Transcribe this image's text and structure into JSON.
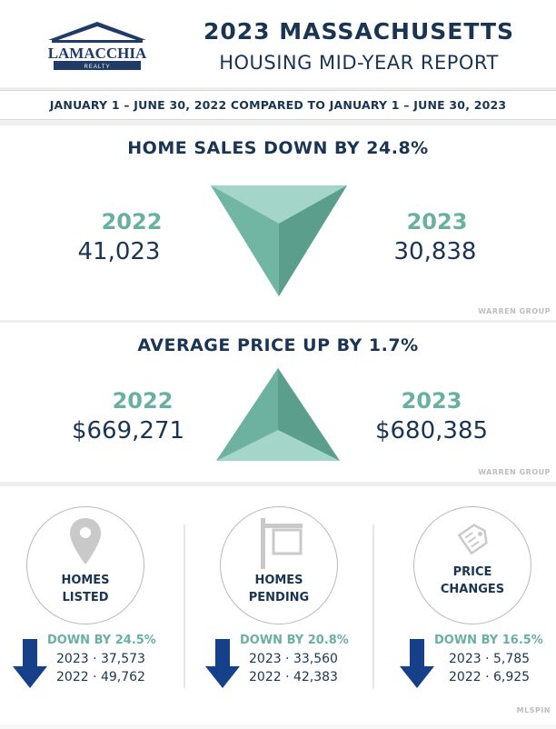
{
  "header": {
    "logo_text": "LAMACCHIA",
    "logo_sub": "REALTY",
    "title": "2023 MASSACHUSETTS",
    "subtitle": "HOUSING MID-YEAR REPORT"
  },
  "date_range": "JANUARY 1  –  JUNE 30, 2022 COMPARED TO JANUARY 1  –  JUNE 30, 2023",
  "sales": {
    "headline": "HOME SALES DOWN BY 24.8%",
    "year_a": "2022",
    "value_a": "41,023",
    "year_b": "2023",
    "value_b": "30,838",
    "source": "WARREN GROUP",
    "color_light": "#86c6b5",
    "color_dark": "#5aa08d"
  },
  "price": {
    "headline": "AVERAGE PRICE UP BY 1.7%",
    "year_a": "2022",
    "value_a": "$669,271",
    "year_b": "2023",
    "value_b": "$680,385",
    "source": "WARREN GROUP"
  },
  "stats": {
    "source": "MLSPIN",
    "items": [
      {
        "label_line1": "HOMES",
        "label_line2": "LISTED",
        "icon": "location-pin-icon",
        "change": "DOWN BY 24.5%",
        "line_2023": "2023 ·  37,573",
        "line_2022": "2022 ·  49,762"
      },
      {
        "label_line1": "HOMES",
        "label_line2": "PENDING",
        "icon": "sign-post-icon",
        "change": "DOWN BY 20.8%",
        "line_2023": "2023 ·  33,560",
        "line_2022": "2022 ·  42,383"
      },
      {
        "label_line1": "PRICE",
        "label_line2": "CHANGES",
        "icon": "price-tag-icon",
        "change": "DOWN BY 16.5%",
        "line_2023": "2023 ·  5,785",
        "line_2022": "2022 ·  6,925"
      }
    ],
    "arrow_color": "#16418a"
  }
}
